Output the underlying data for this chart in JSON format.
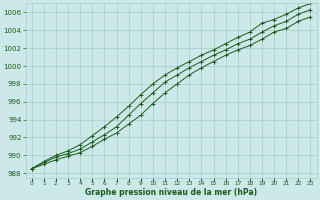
{
  "title": "Graphe pression niveau de la mer (hPa)",
  "background_color": "#cce8e8",
  "grid_color": "#aacaca",
  "line_color": "#1a5c1a",
  "x_labels": [
    "0",
    "1",
    "2",
    "3",
    "4",
    "5",
    "6",
    "7",
    "8",
    "9",
    "10",
    "11",
    "12",
    "13",
    "14",
    "15",
    "16",
    "17",
    "18",
    "19",
    "20",
    "21",
    "22",
    "23"
  ],
  "ylim": [
    987.5,
    1007.0
  ],
  "yticks": [
    988,
    990,
    992,
    994,
    996,
    998,
    1000,
    1002,
    1004,
    1006
  ],
  "hours": [
    0,
    1,
    2,
    3,
    4,
    5,
    6,
    7,
    8,
    9,
    10,
    11,
    12,
    13,
    14,
    15,
    16,
    17,
    18,
    19,
    20,
    21,
    22,
    23
  ],
  "line_main": [
    988.5,
    989.2,
    989.8,
    990.2,
    990.7,
    991.5,
    992.3,
    993.2,
    994.5,
    995.8,
    997.0,
    998.2,
    999.0,
    999.8,
    1000.5,
    1001.2,
    1001.8,
    1002.5,
    1003.0,
    1003.8,
    1004.5,
    1005.0,
    1005.8,
    1006.3
  ],
  "line_high": [
    988.5,
    989.3,
    990.0,
    990.5,
    991.2,
    992.2,
    993.2,
    994.3,
    995.5,
    996.8,
    998.0,
    999.0,
    999.8,
    1000.5,
    1001.2,
    1001.8,
    1002.5,
    1003.2,
    1003.8,
    1004.8,
    1005.2,
    1005.8,
    1006.5,
    1007.0
  ],
  "line_low": [
    988.5,
    989.0,
    989.5,
    989.9,
    990.3,
    991.0,
    991.8,
    992.5,
    993.5,
    994.5,
    995.8,
    997.0,
    998.0,
    999.0,
    999.8,
    1000.5,
    1001.2,
    1001.8,
    1002.3,
    1003.0,
    1003.8,
    1004.2,
    1005.0,
    1005.5
  ]
}
